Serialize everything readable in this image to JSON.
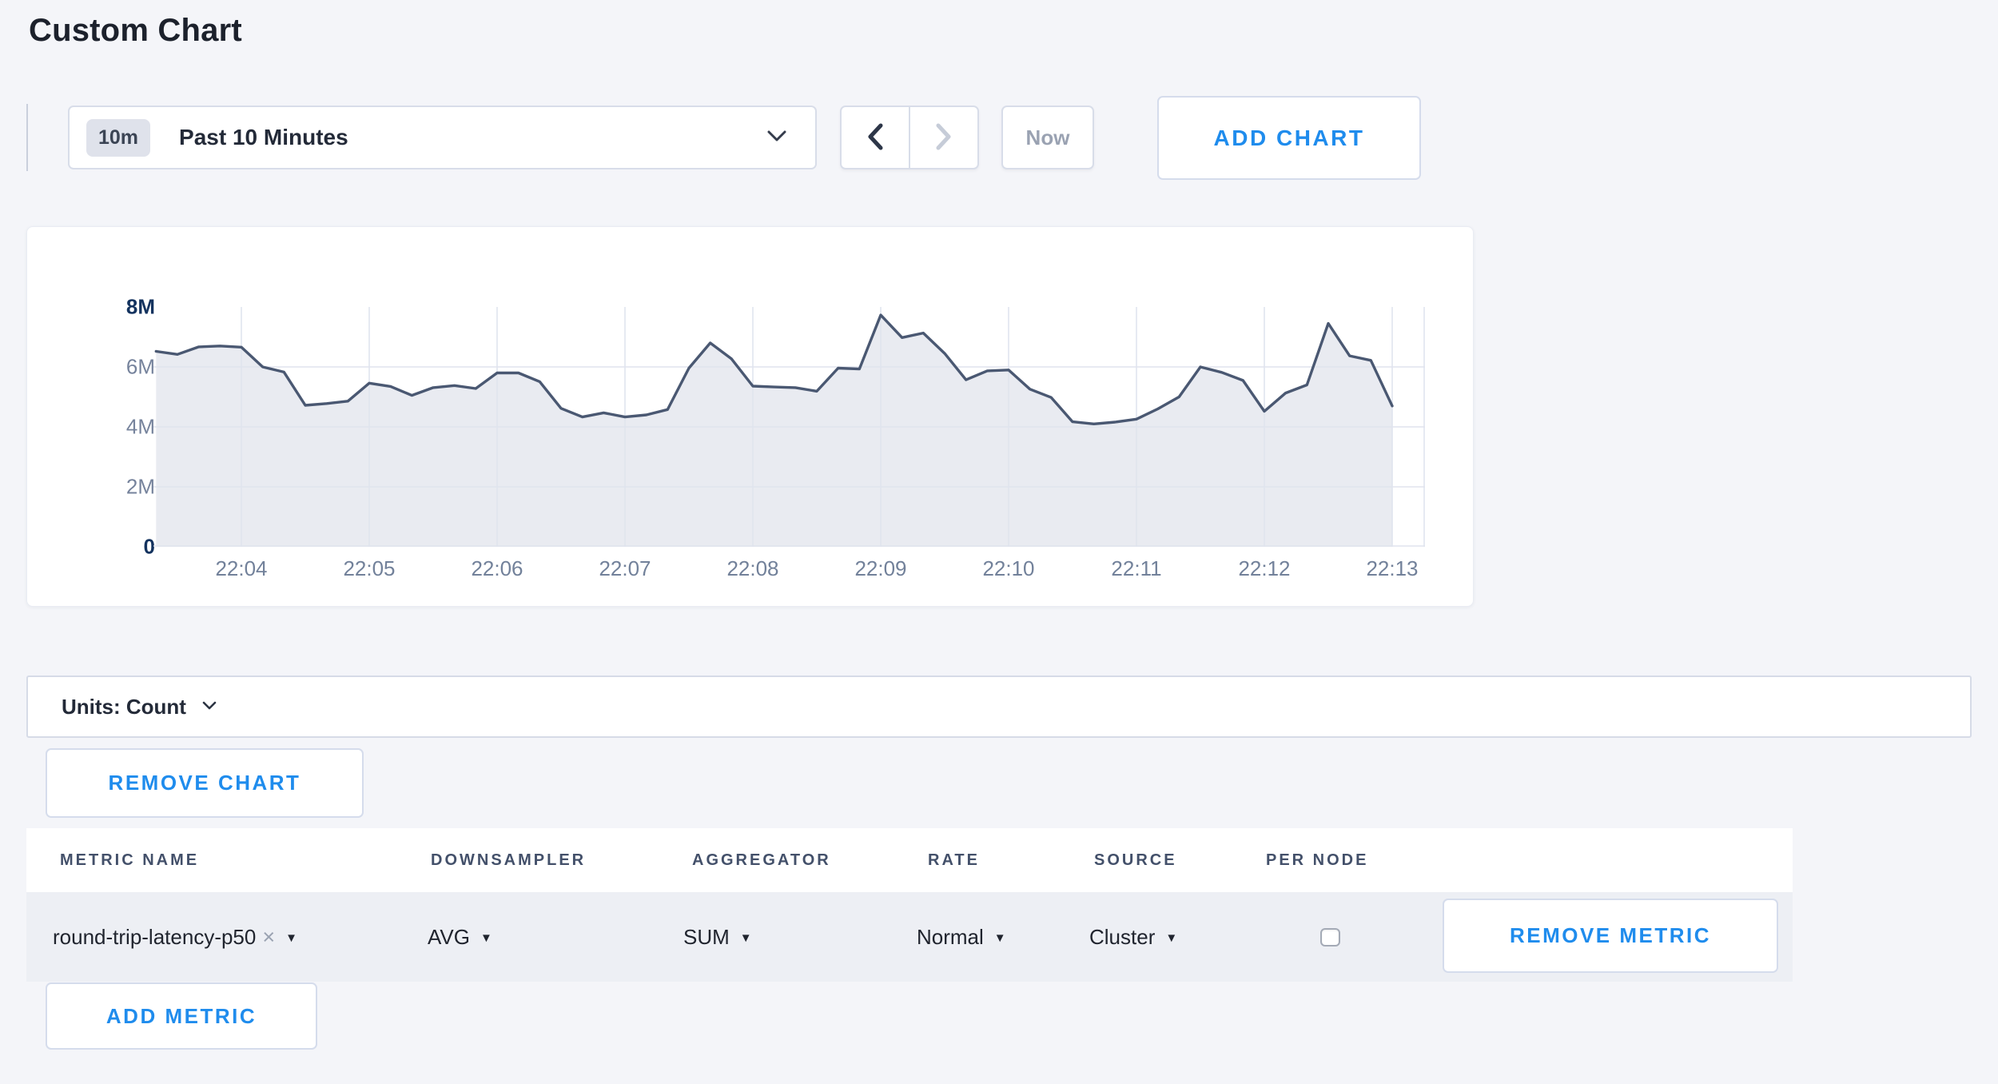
{
  "page": {
    "title": "Custom Chart"
  },
  "toolbar": {
    "time_badge": "10m",
    "time_label": "Past 10 Minutes",
    "now_label": "Now",
    "add_chart_label": "ADD CHART",
    "icons": [
      "chevron-down-icon",
      "chevron-left-icon",
      "chevron-right-icon"
    ]
  },
  "chart_data": {
    "type": "area",
    "title": "",
    "xlabel": "",
    "ylabel": "",
    "unit": "Count",
    "ylim": [
      0,
      8000000
    ],
    "y_ticks": [
      "0",
      "2M",
      "4M",
      "6M",
      "8M"
    ],
    "x_ticks": [
      "22:04",
      "22:05",
      "22:06",
      "22:07",
      "22:08",
      "22:09",
      "22:10",
      "22:11",
      "22:12",
      "22:13"
    ],
    "grid": true,
    "legend": "none",
    "line_color": "#4a5872",
    "fill_color": "#e9ebf1",
    "grid_color": "#e0e4ee",
    "x": [
      "22:03:20",
      "22:03:30",
      "22:03:40",
      "22:03:50",
      "22:04:00",
      "22:04:10",
      "22:04:20",
      "22:04:30",
      "22:04:40",
      "22:04:50",
      "22:05:00",
      "22:05:10",
      "22:05:20",
      "22:05:30",
      "22:05:40",
      "22:05:50",
      "22:06:00",
      "22:06:10",
      "22:06:20",
      "22:06:30",
      "22:06:40",
      "22:06:50",
      "22:07:00",
      "22:07:10",
      "22:07:20",
      "22:07:30",
      "22:07:40",
      "22:07:50",
      "22:08:00",
      "22:08:10",
      "22:08:20",
      "22:08:30",
      "22:08:40",
      "22:08:50",
      "22:09:00",
      "22:09:10",
      "22:09:20",
      "22:09:30",
      "22:09:40",
      "22:09:50",
      "22:10:00",
      "22:10:10",
      "22:10:20",
      "22:10:30",
      "22:10:40",
      "22:10:50",
      "22:11:00",
      "22:11:10",
      "22:11:20",
      "22:11:30",
      "22:11:40",
      "22:11:50",
      "22:12:00",
      "22:12:10",
      "22:12:20",
      "22:12:30",
      "22:12:40",
      "22:12:50",
      "22:13:00"
    ],
    "values_millions": [
      6.52,
      6.42,
      6.67,
      6.7,
      6.66,
      6.0,
      5.83,
      4.72,
      4.78,
      4.86,
      5.46,
      5.35,
      5.05,
      5.31,
      5.38,
      5.28,
      5.8,
      5.8,
      5.51,
      4.62,
      4.33,
      4.47,
      4.33,
      4.4,
      4.58,
      5.96,
      6.8,
      6.27,
      5.36,
      5.33,
      5.31,
      5.19,
      5.96,
      5.93,
      7.73,
      6.98,
      7.13,
      6.45,
      5.57,
      5.87,
      5.9,
      5.26,
      4.98,
      4.17,
      4.1,
      4.16,
      4.26,
      4.6,
      5.0,
      6.0,
      5.82,
      5.55,
      4.52,
      5.13,
      5.4,
      7.45,
      6.37,
      6.22,
      4.7
    ]
  },
  "units_bar": {
    "label": "Units: Count"
  },
  "chart_actions": {
    "remove_chart_label": "REMOVE CHART"
  },
  "metrics_table": {
    "headers": [
      "METRIC NAME",
      "DOWNSAMPLER",
      "AGGREGATOR",
      "RATE",
      "SOURCE",
      "PER NODE"
    ],
    "rows": [
      {
        "metric_name": "round-trip-latency-p50",
        "remove_tag": "×",
        "downsampler": "AVG",
        "aggregator": "SUM",
        "rate": "Normal",
        "source": "Cluster",
        "per_node_checked": false,
        "remove_label": "REMOVE METRIC"
      }
    ],
    "add_metric_label": "ADD METRIC"
  }
}
